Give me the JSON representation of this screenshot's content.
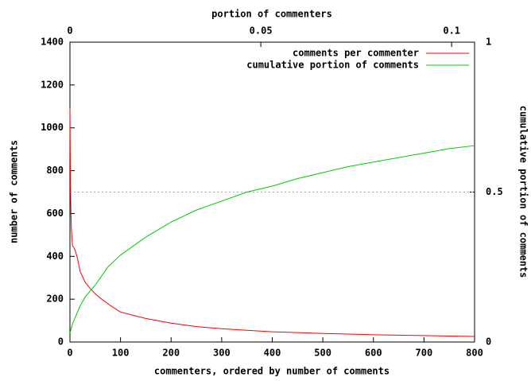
{
  "chart_data": {
    "type": "line",
    "xlabel": "commenters, ordered by number of comments",
    "ylabel": "number of comments",
    "x2label": "portion of commenters",
    "y2label": "cumulative portion of comments",
    "xlim": [
      0,
      800
    ],
    "xticks": [
      0,
      100,
      200,
      300,
      400,
      500,
      600,
      700,
      800
    ],
    "ylim": [
      0,
      1400
    ],
    "yticks": [
      0,
      200,
      400,
      600,
      800,
      1000,
      1200,
      1400
    ],
    "x2lim": [
      0,
      0.106
    ],
    "x2ticks": [
      0,
      0.05,
      0.1
    ],
    "y2lim": [
      0,
      1
    ],
    "y2ticks": [
      0,
      0.5,
      1
    ],
    "reference_line": {
      "axis": "y2",
      "value": 0.5,
      "color": "#aaaaaa"
    },
    "legend": "top-right",
    "series": [
      {
        "name": "comments per commenter",
        "color": "#ff0000",
        "axis": "y",
        "x": [
          0,
          1,
          2,
          3,
          5,
          8,
          10,
          15,
          20,
          30,
          40,
          50,
          60,
          80,
          100,
          125,
          150,
          200,
          250,
          300,
          350,
          400,
          450,
          500,
          550,
          600,
          650,
          700,
          750,
          800
        ],
        "values": [
          1090,
          730,
          600,
          520,
          450,
          440,
          430,
          390,
          330,
          280,
          250,
          225,
          205,
          170,
          140,
          125,
          110,
          88,
          72,
          62,
          55,
          48,
          44,
          40,
          37,
          34,
          32,
          30,
          28,
          26
        ]
      },
      {
        "name": "cumulative portion of comments",
        "color": "#00cc00",
        "axis": "y2",
        "x": [
          0,
          5,
          10,
          20,
          30,
          50,
          75,
          100,
          150,
          200,
          250,
          300,
          350,
          400,
          450,
          500,
          550,
          600,
          650,
          700,
          750,
          800
        ],
        "values": [
          0.03,
          0.06,
          0.08,
          0.12,
          0.15,
          0.19,
          0.25,
          0.29,
          0.35,
          0.4,
          0.44,
          0.47,
          0.5,
          0.52,
          0.545,
          0.565,
          0.585,
          0.6,
          0.615,
          0.63,
          0.645,
          0.655
        ]
      }
    ]
  }
}
